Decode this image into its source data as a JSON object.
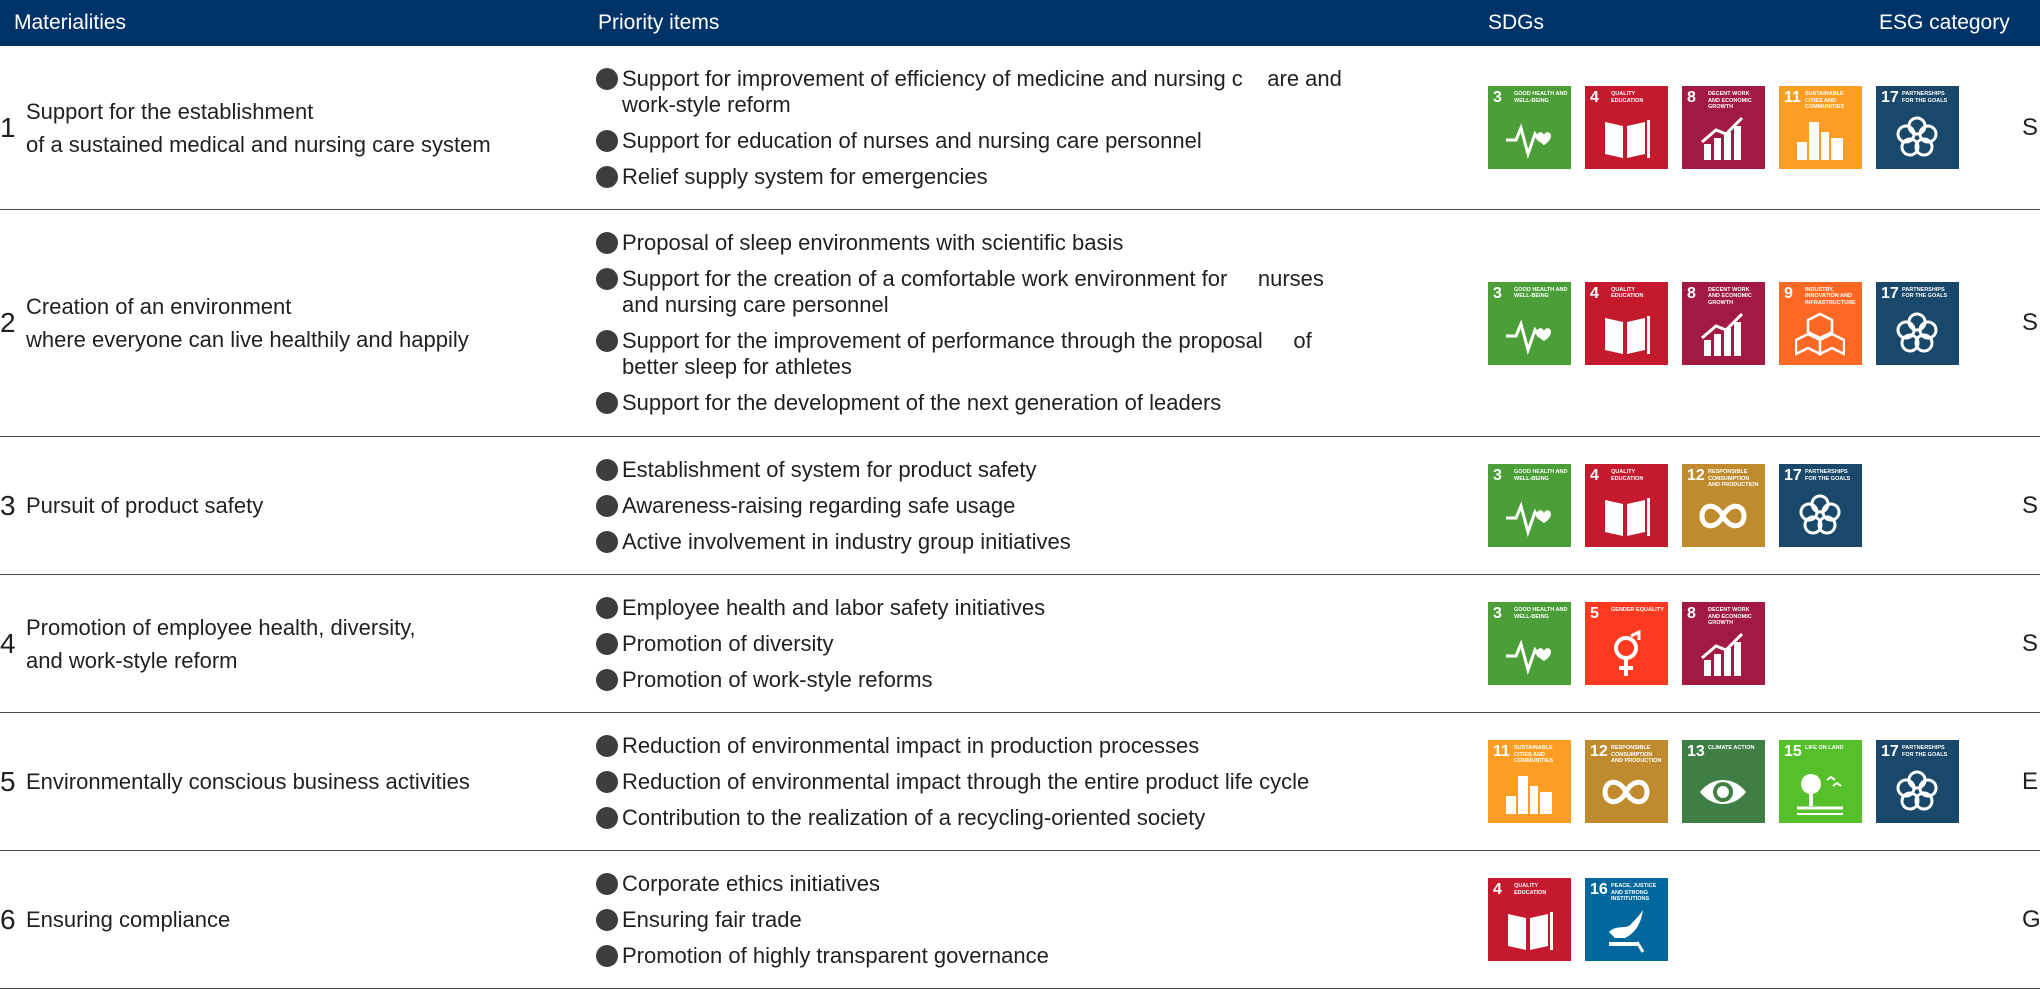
{
  "header": {
    "materialities": "Materialities",
    "priority_items": "Priority items",
    "sdgs": "SDGs",
    "esg_category": "ESG category"
  },
  "sdg_goals": {
    "3": {
      "num": "3",
      "title": "GOOD HEALTH AND WELL-BEING",
      "color": "#4c9f38",
      "icon": "heartbeat-icon"
    },
    "4": {
      "num": "4",
      "title": "QUALITY EDUCATION",
      "color": "#c5192d",
      "icon": "book-icon"
    },
    "5": {
      "num": "5",
      "title": "GENDER EQUALITY",
      "color": "#ff3a21",
      "icon": "gender-icon"
    },
    "8": {
      "num": "8",
      "title": "DECENT WORK AND ECONOMIC GROWTH",
      "color": "#a21942",
      "icon": "growth-chart-icon"
    },
    "9": {
      "num": "9",
      "title": "INDUSTRY, INNOVATION AND INFRASTRUCTURE",
      "color": "#fd6925",
      "icon": "cubes-icon"
    },
    "11": {
      "num": "11",
      "title": "SUSTAINABLE CITIES AND COMMUNITIES",
      "color": "#fd9d24",
      "icon": "city-icon"
    },
    "12": {
      "num": "12",
      "title": "RESPONSIBLE CONSUMPTION AND PRODUCTION",
      "color": "#bf8b2e",
      "icon": "infinity-icon"
    },
    "13": {
      "num": "13",
      "title": "CLIMATE ACTION",
      "color": "#3f7e44",
      "icon": "eye-globe-icon"
    },
    "15": {
      "num": "15",
      "title": "LIFE ON LAND",
      "color": "#56c02b",
      "icon": "tree-icon"
    },
    "16": {
      "num": "16",
      "title": "PEACE, JUSTICE AND STRONG INSTITUTIONS",
      "color": "#00689d",
      "icon": "dove-icon"
    },
    "17": {
      "num": "17",
      "title": "PARTNERSHIPS FOR THE GOALS",
      "color": "#19486a",
      "icon": "flower-icon"
    }
  },
  "rows": [
    {
      "num": "1",
      "materiality_lines": [
        "Support for the establishment",
        "of a sustained medical and nursing care system"
      ],
      "items": [
        "Support for improvement of efficiency of medicine and nursing c    are and\nwork-style reform",
        "Support for education of nurses and nursing care personnel",
        "Relief supply system for emergencies"
      ],
      "sdgs": [
        "3",
        "4",
        "8",
        "11",
        "17"
      ],
      "esg": "S"
    },
    {
      "num": "2",
      "materiality_lines": [
        "Creation of an environment",
        "where everyone can live healthily and happily"
      ],
      "items": [
        "Proposal of sleep environments with scientific basis",
        "Support for the creation of a comfortable work environment for     nurses\nand nursing care personnel",
        "Support for the improvement of performance through the proposal     of\nbetter sleep for athletes",
        "Support for the development of the next generation of leaders"
      ],
      "sdgs": [
        "3",
        "4",
        "8",
        "9",
        "17"
      ],
      "esg": "S"
    },
    {
      "num": "3",
      "materiality_lines": [
        "Pursuit of product safety"
      ],
      "items": [
        "Establishment of system for product safety",
        "Awareness-raising regarding safe usage",
        "Active involvement in industry group initiatives"
      ],
      "sdgs": [
        "3",
        "4",
        "12",
        "17"
      ],
      "esg": "S"
    },
    {
      "num": "4",
      "materiality_lines": [
        "Promotion of employee health, diversity,",
        "and work-style reform"
      ],
      "items": [
        "Employee health and labor safety initiatives",
        "Promotion of diversity",
        "Promotion of work-style reforms"
      ],
      "sdgs": [
        "3",
        "5",
        "8"
      ],
      "esg": "S"
    },
    {
      "num": "5",
      "materiality_lines": [
        "Environmentally conscious business activities"
      ],
      "items": [
        "Reduction of environmental impact in production processes",
        "Reduction of environmental impact through the entire product life cycle",
        "Contribution to the realization of a recycling-oriented society"
      ],
      "sdgs": [
        "11",
        "12",
        "13",
        "15",
        "17"
      ],
      "esg": "E"
    },
    {
      "num": "6",
      "materiality_lines": [
        "Ensuring compliance"
      ],
      "items": [
        "Corporate ethics initiatives",
        "Ensuring fair trade",
        "Promotion of highly transparent governance"
      ],
      "sdgs": [
        "4",
        "16"
      ],
      "esg": "G"
    }
  ]
}
